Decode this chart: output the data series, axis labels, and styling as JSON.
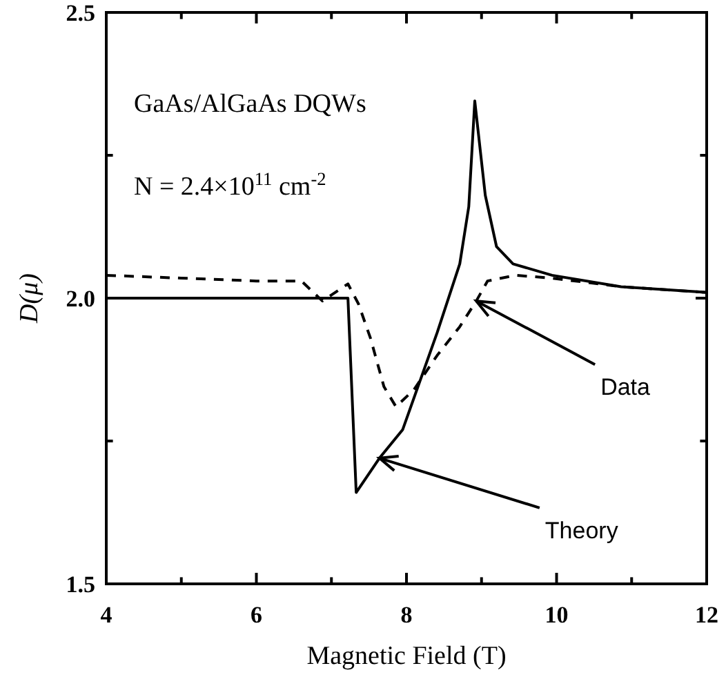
{
  "chart_data": {
    "type": "line",
    "xlabel": "Magnetic Field (T)",
    "ylabel": "D(μ)",
    "xlim": [
      4,
      12
    ],
    "ylim": [
      1.5,
      2.5
    ],
    "xticks": [
      4,
      {
        "value": 5,
        "label": null
      },
      6,
      {
        "value": 7,
        "label": null
      },
      8,
      {
        "value": 9,
        "label": null
      },
      10,
      {
        "value": 11,
        "label": null
      },
      12
    ],
    "yticks": [
      1.5,
      {
        "value": 1.75,
        "label": null
      },
      {
        "value": 2,
        "label": "2.0"
      },
      {
        "value": 2.25,
        "label": null
      },
      2.5
    ],
    "grid": false,
    "marker": "none",
    "series": [
      {
        "color": "#000000",
        "line_style": "solid",
        "x": [
          4,
          7.22,
          7.33,
          7.64,
          7.95,
          8.41,
          8.71,
          8.83,
          8.91,
          9.05,
          9.2,
          9.42,
          9.94,
          10.86,
          12
        ],
        "values": [
          2.0,
          2.0,
          1.66,
          1.72,
          1.77,
          1.94,
          2.06,
          2.16,
          2.345,
          2.18,
          2.09,
          2.06,
          2.04,
          2.02,
          2.01
        ]
      },
      {
        "color": "#000000",
        "line_style": "dashed",
        "x": [
          4,
          5,
          6,
          6.6,
          6.88,
          7.22,
          7.36,
          7.52,
          7.7,
          7.86,
          8.1,
          8.41,
          8.71,
          8.93,
          9.08,
          9.45,
          9.94,
          10.86,
          12
        ],
        "values": [
          2.04,
          2.035,
          2.03,
          2.03,
          1.995,
          2.025,
          1.99,
          1.93,
          1.845,
          1.81,
          1.84,
          1.9,
          1.95,
          1.995,
          2.03,
          2.04,
          2.035,
          2.02,
          2.01
        ]
      }
    ],
    "annotations": [
      "GaAs/AlGaAs DQWs",
      "N = 2.4×10$^{11}$ cm$^{-2}$",
      {
        "text": "Data",
        "x": 8.93,
        "y": 1.995
      },
      {
        "text": "Theory",
        "x": 7.64,
        "y": 1.72
      }
    ]
  }
}
